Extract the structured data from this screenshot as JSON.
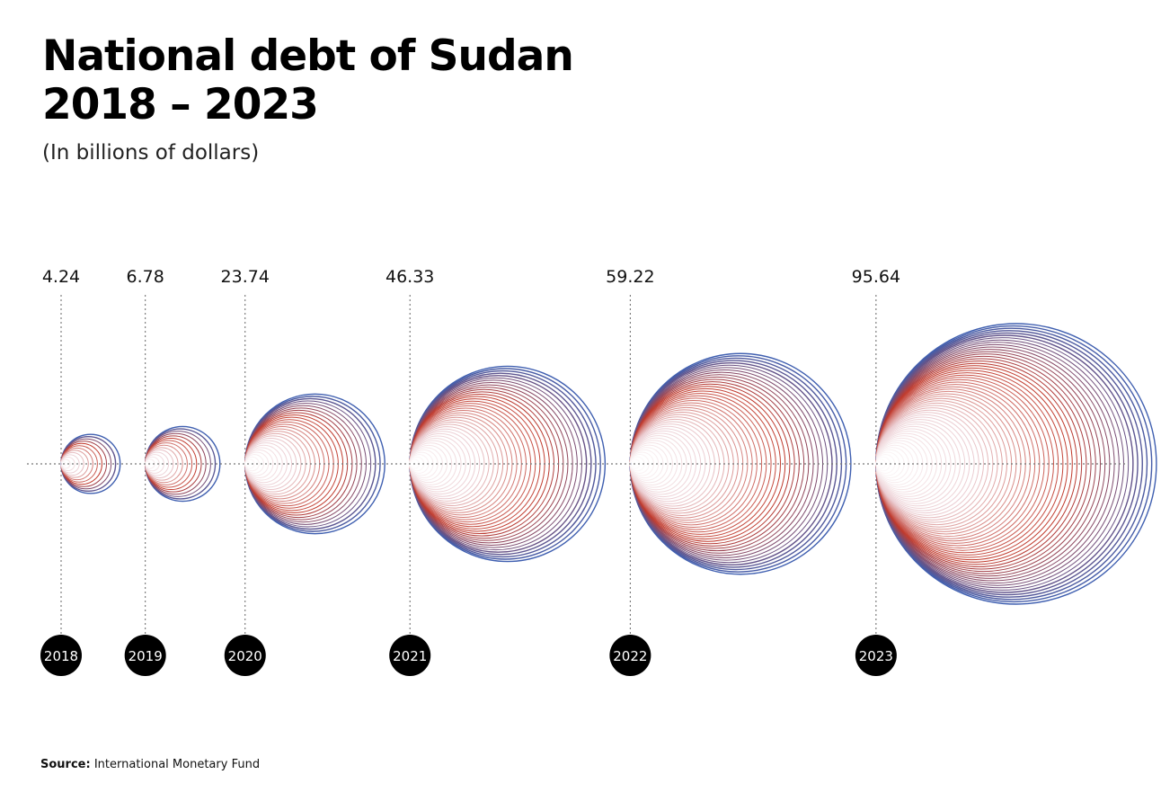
{
  "header": {
    "title_line1": "National debt of Sudan",
    "title_line2": "2018 – 2023",
    "subtitle": "(In billions of dollars)"
  },
  "footer": {
    "source_label": "Source:",
    "source_text": "International Monetary Fund"
  },
  "colors": {
    "outer": "#3f5fb0",
    "inner": "#c0392b",
    "center": "#ffffff",
    "badge": "#000000",
    "badge_text": "#ffffff"
  },
  "chart_data": {
    "type": "bubble",
    "title": "National debt of Sudan 2018 – 2023",
    "subtitle": "(In billions of dollars)",
    "categories": [
      "2018",
      "2019",
      "2020",
      "2021",
      "2022",
      "2023"
    ],
    "values": [
      4.24,
      6.78,
      23.74,
      46.33,
      59.22,
      95.64
    ],
    "value_labels": [
      "4.24",
      "6.78",
      "23.74",
      "46.33",
      "59.22",
      "95.64"
    ],
    "grid": false,
    "legend": "none"
  }
}
